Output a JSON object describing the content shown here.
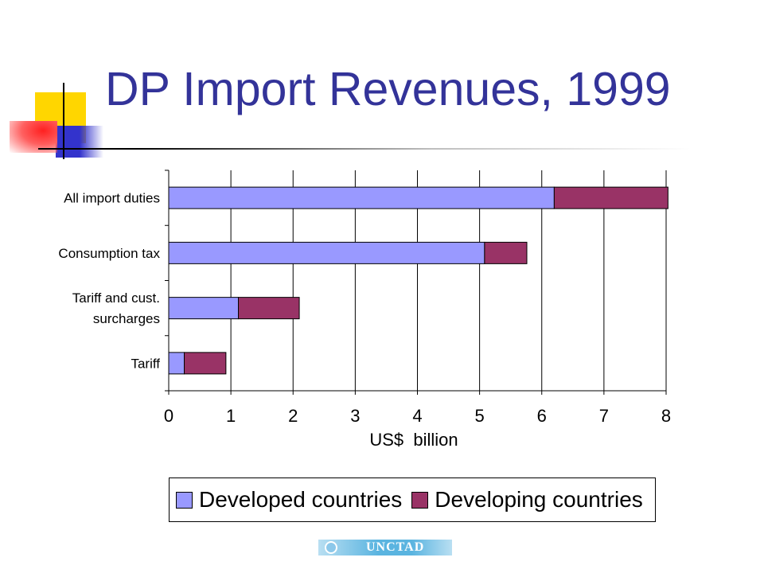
{
  "slide": {
    "title": "DP Import Revenues, 1999"
  },
  "logo": {
    "text": "UNCTAD"
  },
  "colors": {
    "developed": "#9999ff",
    "developing": "#993366"
  },
  "chart_data": {
    "type": "bar",
    "orientation": "horizontal",
    "stacked": true,
    "categories": [
      "All import duties",
      "Consumption tax",
      "Tariff and cust. surcharges",
      "Tariff"
    ],
    "category_lines": [
      [
        "All import duties"
      ],
      [
        "Consumption tax"
      ],
      [
        "Tariff and cust.",
        "surcharges"
      ],
      [
        "Tariff"
      ]
    ],
    "series": [
      {
        "name": "Developed countries",
        "color": "#9999ff",
        "values": [
          6.2,
          5.08,
          1.12,
          0.25
        ]
      },
      {
        "name": "Developing countries",
        "color": "#993366",
        "values": [
          1.83,
          0.68,
          0.98,
          0.67
        ]
      }
    ],
    "x_ticks": [
      "0",
      "1",
      "2",
      "3",
      "4",
      "5",
      "6",
      "7",
      "8"
    ],
    "xlim": [
      0,
      8
    ],
    "xlabel": "US$  billion",
    "ylabel": "",
    "grid": {
      "vertical": true,
      "horizontal": false
    },
    "legend_position": "bottom"
  }
}
